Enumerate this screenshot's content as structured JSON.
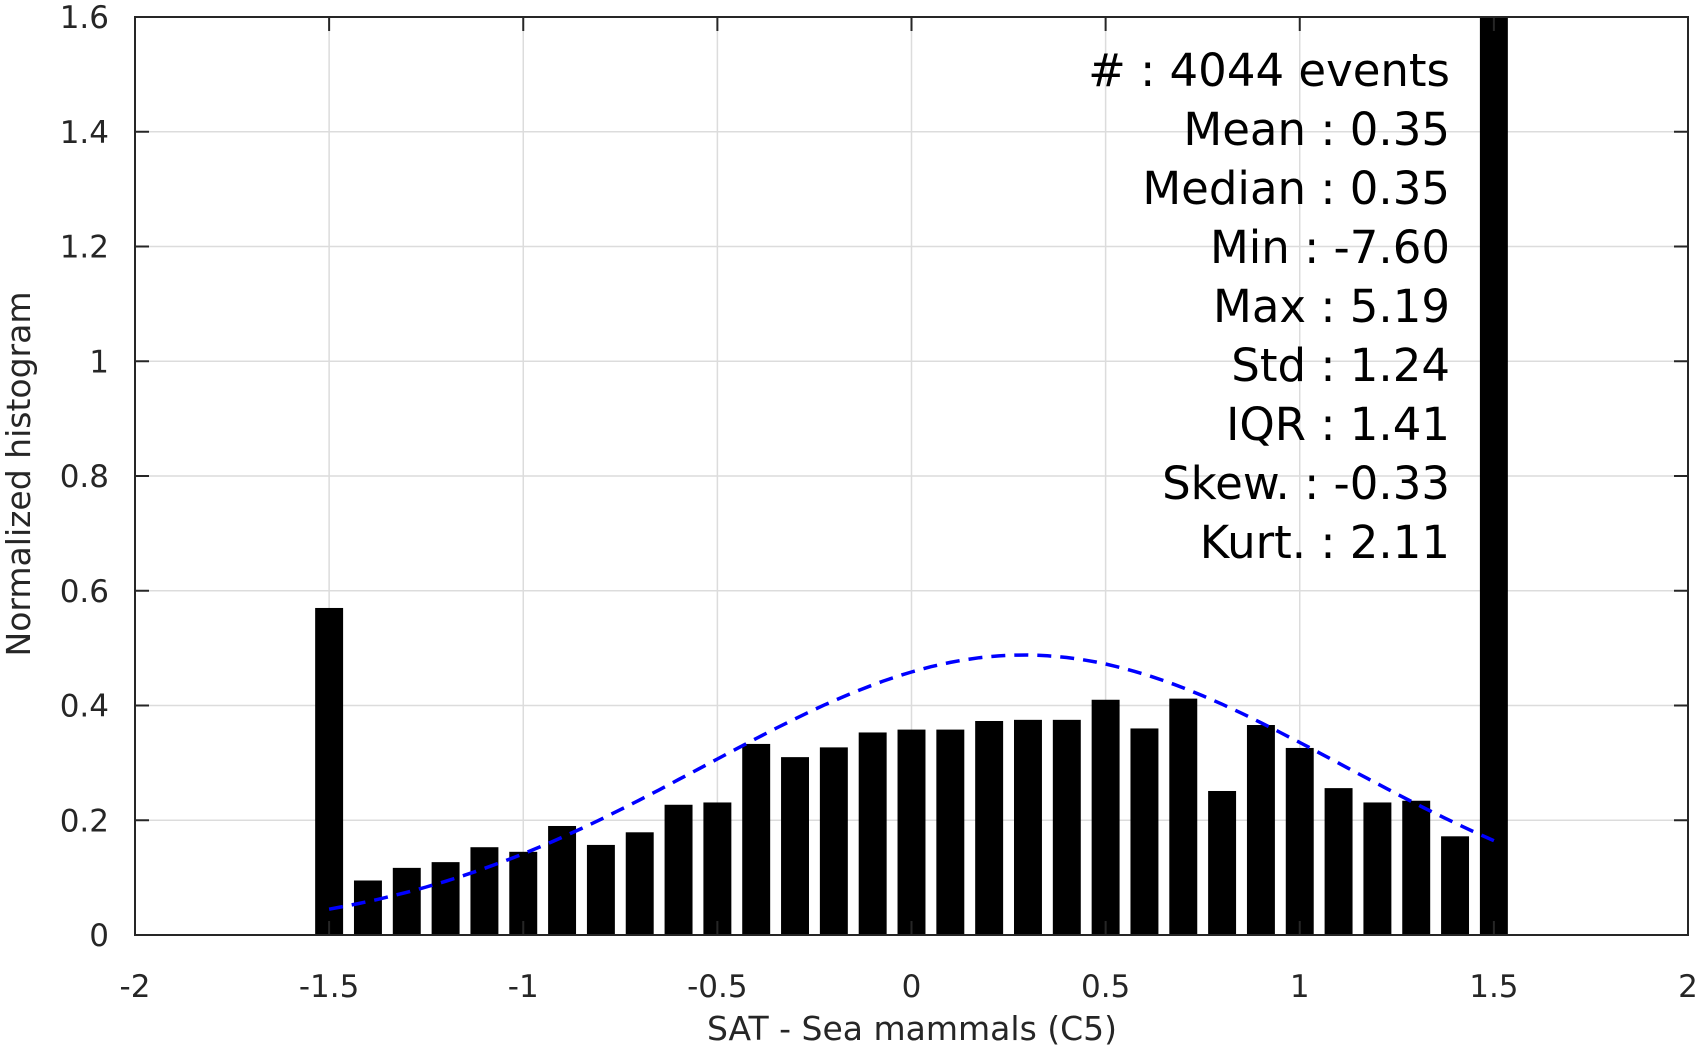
{
  "chart_data": {
    "type": "bar",
    "xlabel": "SAT - Sea mammals  (C5)",
    "ylabel": "Normalized histogram",
    "xlim": [
      -2,
      2
    ],
    "ylim": [
      0,
      1.6
    ],
    "grid": true,
    "x_ticks": [
      -2,
      -1.5,
      -1,
      -0.5,
      0,
      0.5,
      1,
      1.5,
      2
    ],
    "x_tick_labels": [
      "-2",
      "-1.5",
      "-1",
      "-0.5",
      "0",
      "0.5",
      "1",
      "1.5",
      "2"
    ],
    "y_ticks": [
      0,
      0.2,
      0.4,
      0.6,
      0.8,
      1,
      1.2,
      1.4,
      1.6
    ],
    "y_tick_labels": [
      "0",
      "0.2",
      "0.4",
      "0.6",
      "0.8",
      "1",
      "1.2",
      "1.4",
      "1.6"
    ],
    "bar_color": "#000000",
    "fit_color": "#0000ff",
    "bars": {
      "x": [
        -1.5,
        -1.4,
        -1.3,
        -1.2,
        -1.1,
        -1.0,
        -0.9,
        -0.8,
        -0.7,
        -0.6,
        -0.5,
        -0.4,
        -0.3,
        -0.2,
        -0.1,
        0.0,
        0.1,
        0.2,
        0.3,
        0.4,
        0.5,
        0.6,
        0.7,
        0.8,
        0.9,
        1.0,
        1.1,
        1.2,
        1.3,
        1.4,
        1.5
      ],
      "values": [
        0.57,
        0.095,
        0.117,
        0.127,
        0.153,
        0.145,
        0.19,
        0.157,
        0.179,
        0.227,
        0.231,
        0.333,
        0.31,
        0.327,
        0.353,
        0.358,
        0.358,
        0.373,
        0.375,
        0.375,
        0.41,
        0.36,
        0.412,
        0.251,
        0.366,
        0.326,
        0.256,
        0.231,
        0.234,
        0.172,
        1.6
      ]
    },
    "fit": {
      "style": "dashed",
      "mean": 0.29,
      "std": 0.82,
      "peak": 0.488,
      "x_range": [
        -1.5,
        1.5
      ]
    }
  },
  "stats": [
    {
      "label": "#  ",
      "value": ": 4044 events"
    },
    {
      "label": "Mean",
      "value": ": 0.35"
    },
    {
      "label": "Median",
      "value": ": 0.35"
    },
    {
      "label": "Min",
      "value": ": -7.60"
    },
    {
      "label": "Max",
      "value": ": 5.19"
    },
    {
      "label": "Std",
      "value": ": 1.24"
    },
    {
      "label": "IQR",
      "value": ": 1.41"
    },
    {
      "label": "Skew.",
      "value": ": -0.33"
    },
    {
      "label": "Kurt.",
      "value": ": 2.11"
    }
  ]
}
